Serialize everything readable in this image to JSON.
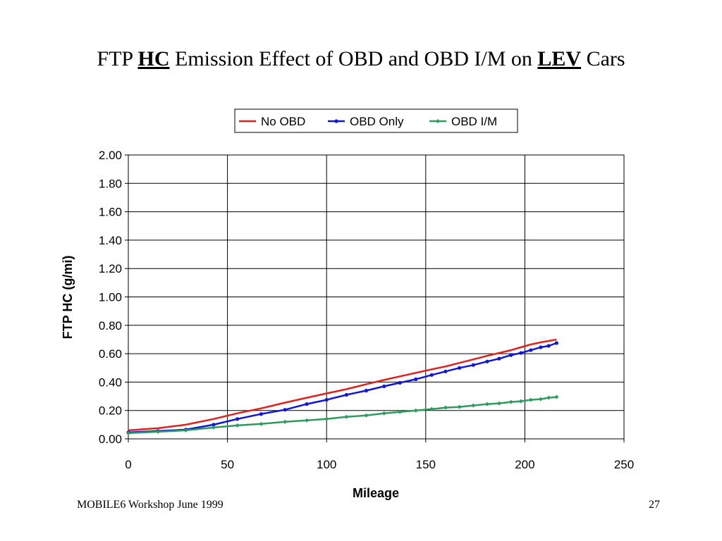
{
  "slide": {
    "title_parts": [
      "FTP ",
      "HC",
      " Emission Effect of OBD and OBD I/M on ",
      "LEV",
      " Cars"
    ],
    "footer_left": "MOBILE6 Workshop June 1999",
    "page_number": "27"
  },
  "chart_data": {
    "type": "line",
    "title": "",
    "xlabel": "Mileage",
    "ylabel": "FTP HC (g/mi)",
    "xlim": [
      0,
      250
    ],
    "ylim": [
      0,
      2
    ],
    "xticks": [
      "0",
      "50",
      "100",
      "150",
      "200",
      "250"
    ],
    "yticks": [
      "0.00",
      "0.20",
      "0.40",
      "0.60",
      "0.80",
      "1.00",
      "1.20",
      "1.40",
      "1.60",
      "1.80",
      "2.00"
    ],
    "grid": true,
    "legend_position": "top",
    "series": [
      {
        "name": "No OBD",
        "color": "#e0201b",
        "marker": "none",
        "x": [
          0,
          15,
          29,
          43,
          55,
          67,
          79,
          90,
          100,
          110,
          120,
          129,
          137,
          145,
          153,
          160,
          167,
          174,
          181,
          187,
          193,
          198,
          203,
          208,
          212,
          216
        ],
        "y": [
          0.06,
          0.075,
          0.1,
          0.14,
          0.18,
          0.215,
          0.255,
          0.29,
          0.32,
          0.35,
          0.385,
          0.415,
          0.44,
          0.465,
          0.49,
          0.51,
          0.535,
          0.56,
          0.585,
          0.605,
          0.625,
          0.645,
          0.665,
          0.68,
          0.69,
          0.7
        ]
      },
      {
        "name": "OBD Only",
        "color": "#1016d8",
        "marker": "circle",
        "x": [
          0,
          15,
          29,
          43,
          55,
          67,
          79,
          90,
          100,
          110,
          120,
          129,
          137,
          145,
          153,
          160,
          167,
          174,
          181,
          187,
          193,
          198,
          203,
          208,
          212,
          216
        ],
        "y": [
          0.045,
          0.055,
          0.065,
          0.1,
          0.14,
          0.175,
          0.205,
          0.245,
          0.275,
          0.31,
          0.34,
          0.37,
          0.395,
          0.42,
          0.45,
          0.475,
          0.5,
          0.52,
          0.545,
          0.565,
          0.59,
          0.605,
          0.625,
          0.645,
          0.655,
          0.675
        ]
      },
      {
        "name": "OBD I/M",
        "color": "#2e9a5e",
        "marker": "diamond",
        "x": [
          0,
          15,
          29,
          43,
          55,
          67,
          79,
          90,
          100,
          110,
          120,
          129,
          137,
          145,
          153,
          160,
          167,
          174,
          181,
          187,
          193,
          198,
          203,
          208,
          212,
          216
        ],
        "y": [
          0.04,
          0.05,
          0.06,
          0.08,
          0.095,
          0.105,
          0.12,
          0.13,
          0.14,
          0.155,
          0.165,
          0.18,
          0.19,
          0.2,
          0.21,
          0.22,
          0.225,
          0.235,
          0.245,
          0.25,
          0.26,
          0.265,
          0.275,
          0.28,
          0.29,
          0.295
        ]
      }
    ]
  }
}
